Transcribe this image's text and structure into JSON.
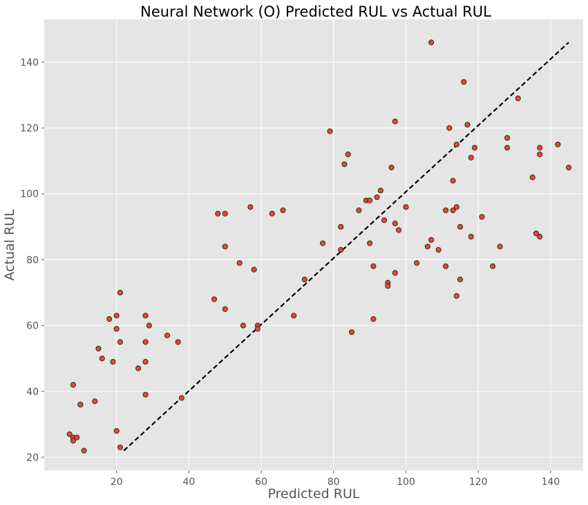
{
  "chart_data": {
    "type": "scatter",
    "title": "Neural Network (O) Predicted RUL vs Actual RUL",
    "xlabel": "Predicted RUL",
    "ylabel": "Actual RUL",
    "xlim": [
      0,
      149
    ],
    "ylim": [
      16,
      153
    ],
    "xticks": [
      20,
      40,
      60,
      80,
      100,
      120,
      140
    ],
    "yticks": [
      20,
      40,
      60,
      80,
      100,
      120,
      140
    ],
    "grid": true,
    "legend": "none",
    "colors": {
      "background": "#e5e5e5",
      "grid": "#ffffff",
      "marker_fill": "#e24a33",
      "marker_edge": "#222222",
      "reference_line": "#000000"
    },
    "reference_line": {
      "from": [
        22,
        22
      ],
      "to": [
        145,
        146
      ],
      "style": "dashed"
    },
    "points": [
      {
        "x": 7,
        "y": 27
      },
      {
        "x": 8,
        "y": 26
      },
      {
        "x": 8,
        "y": 25
      },
      {
        "x": 9,
        "y": 26
      },
      {
        "x": 8,
        "y": 42
      },
      {
        "x": 10,
        "y": 36
      },
      {
        "x": 10,
        "y": 36
      },
      {
        "x": 11,
        "y": 22
      },
      {
        "x": 14,
        "y": 37
      },
      {
        "x": 15,
        "y": 53
      },
      {
        "x": 16,
        "y": 50
      },
      {
        "x": 18,
        "y": 62
      },
      {
        "x": 19,
        "y": 49
      },
      {
        "x": 20,
        "y": 63
      },
      {
        "x": 20,
        "y": 59
      },
      {
        "x": 20,
        "y": 28
      },
      {
        "x": 21,
        "y": 70
      },
      {
        "x": 21,
        "y": 55
      },
      {
        "x": 21,
        "y": 23
      },
      {
        "x": 26,
        "y": 47
      },
      {
        "x": 28,
        "y": 63
      },
      {
        "x": 28,
        "y": 55
      },
      {
        "x": 28,
        "y": 49
      },
      {
        "x": 28,
        "y": 39
      },
      {
        "x": 29,
        "y": 60
      },
      {
        "x": 34,
        "y": 57
      },
      {
        "x": 37,
        "y": 55
      },
      {
        "x": 38,
        "y": 38
      },
      {
        "x": 47,
        "y": 68
      },
      {
        "x": 48,
        "y": 94
      },
      {
        "x": 50,
        "y": 94
      },
      {
        "x": 50,
        "y": 84
      },
      {
        "x": 50,
        "y": 65
      },
      {
        "x": 54,
        "y": 79
      },
      {
        "x": 55,
        "y": 60
      },
      {
        "x": 57,
        "y": 96
      },
      {
        "x": 58,
        "y": 77
      },
      {
        "x": 59,
        "y": 60
      },
      {
        "x": 59,
        "y": 59
      },
      {
        "x": 63,
        "y": 94
      },
      {
        "x": 66,
        "y": 95
      },
      {
        "x": 69,
        "y": 63
      },
      {
        "x": 72,
        "y": 74
      },
      {
        "x": 77,
        "y": 85
      },
      {
        "x": 79,
        "y": 119
      },
      {
        "x": 82,
        "y": 90
      },
      {
        "x": 82,
        "y": 83
      },
      {
        "x": 83,
        "y": 109
      },
      {
        "x": 84,
        "y": 112
      },
      {
        "x": 85,
        "y": 58
      },
      {
        "x": 87,
        "y": 95
      },
      {
        "x": 89,
        "y": 98
      },
      {
        "x": 90,
        "y": 98
      },
      {
        "x": 90,
        "y": 85
      },
      {
        "x": 91,
        "y": 78
      },
      {
        "x": 91,
        "y": 62
      },
      {
        "x": 92,
        "y": 99
      },
      {
        "x": 93,
        "y": 101
      },
      {
        "x": 94,
        "y": 92
      },
      {
        "x": 95,
        "y": 73
      },
      {
        "x": 95,
        "y": 72
      },
      {
        "x": 96,
        "y": 108
      },
      {
        "x": 97,
        "y": 122
      },
      {
        "x": 97,
        "y": 91
      },
      {
        "x": 97,
        "y": 76
      },
      {
        "x": 98,
        "y": 89
      },
      {
        "x": 100,
        "y": 96
      },
      {
        "x": 103,
        "y": 79
      },
      {
        "x": 106,
        "y": 84
      },
      {
        "x": 107,
        "y": 146
      },
      {
        "x": 107,
        "y": 86
      },
      {
        "x": 109,
        "y": 83
      },
      {
        "x": 111,
        "y": 95
      },
      {
        "x": 111,
        "y": 78
      },
      {
        "x": 112,
        "y": 120
      },
      {
        "x": 113,
        "y": 104
      },
      {
        "x": 113,
        "y": 95
      },
      {
        "x": 114,
        "y": 115
      },
      {
        "x": 114,
        "y": 96
      },
      {
        "x": 114,
        "y": 69
      },
      {
        "x": 115,
        "y": 90
      },
      {
        "x": 115,
        "y": 74
      },
      {
        "x": 116,
        "y": 134
      },
      {
        "x": 117,
        "y": 121
      },
      {
        "x": 118,
        "y": 111
      },
      {
        "x": 118,
        "y": 87
      },
      {
        "x": 119,
        "y": 114
      },
      {
        "x": 121,
        "y": 93
      },
      {
        "x": 124,
        "y": 78
      },
      {
        "x": 126,
        "y": 84
      },
      {
        "x": 128,
        "y": 117
      },
      {
        "x": 128,
        "y": 114
      },
      {
        "x": 131,
        "y": 129
      },
      {
        "x": 135,
        "y": 105
      },
      {
        "x": 136,
        "y": 88
      },
      {
        "x": 137,
        "y": 114
      },
      {
        "x": 137,
        "y": 112
      },
      {
        "x": 137,
        "y": 87
      },
      {
        "x": 142,
        "y": 115
      },
      {
        "x": 145,
        "y": 108
      }
    ]
  }
}
